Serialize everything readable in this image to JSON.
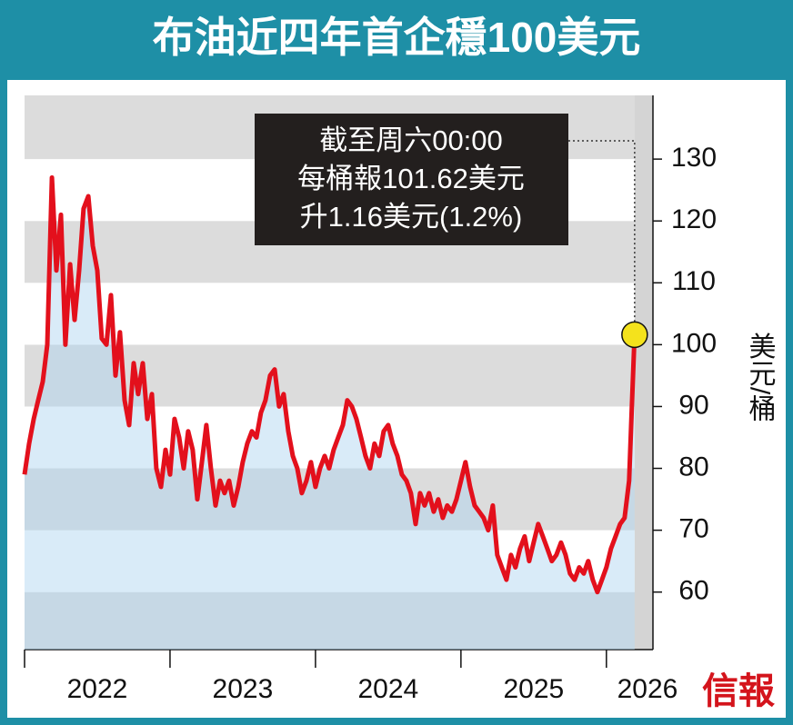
{
  "chart_data": {
    "type": "line",
    "title": "布油近四年首企穩100美元",
    "y_label": "美元/桶",
    "annotation": [
      "截至周六00:00",
      "每桶報101.62美元",
      "升1.16美元(1.2%)"
    ],
    "source": "信報",
    "xlim": [
      2022,
      2026.32
    ],
    "xticks": [
      {
        "value": 2022,
        "label": "2022"
      },
      {
        "value": 2023,
        "label": "2023"
      },
      {
        "value": 2024,
        "label": "2024"
      },
      {
        "value": 2025,
        "label": "2025"
      },
      {
        "value": 2026,
        "label": "2026"
      }
    ],
    "ylim": [
      50.7,
      140.3
    ],
    "yticks": [
      60,
      70,
      80,
      90,
      100,
      110,
      120,
      130
    ],
    "grid": true,
    "color": "#e3101c",
    "x": [
      2022.0,
      2022.031,
      2022.063,
      2022.094,
      2022.125,
      2022.156,
      2022.188,
      2022.219,
      2022.25,
      2022.281,
      2022.313,
      2022.344,
      2022.375,
      2022.406,
      2022.438,
      2022.469,
      2022.5,
      2022.531,
      2022.563,
      2022.594,
      2022.625,
      2022.656,
      2022.688,
      2022.719,
      2022.75,
      2022.781,
      2022.813,
      2022.844,
      2022.875,
      2022.906,
      2022.938,
      2022.969,
      2023.0,
      2023.031,
      2023.063,
      2023.094,
      2023.125,
      2023.156,
      2023.188,
      2023.219,
      2023.25,
      2023.281,
      2023.313,
      2023.344,
      2023.375,
      2023.406,
      2023.438,
      2023.469,
      2023.5,
      2023.531,
      2023.563,
      2023.594,
      2023.625,
      2023.656,
      2023.688,
      2023.719,
      2023.75,
      2023.781,
      2023.813,
      2023.844,
      2023.875,
      2023.906,
      2023.938,
      2023.969,
      2024.0,
      2024.031,
      2024.063,
      2024.094,
      2024.125,
      2024.156,
      2024.188,
      2024.219,
      2024.25,
      2024.281,
      2024.313,
      2024.344,
      2024.375,
      2024.406,
      2024.438,
      2024.469,
      2024.5,
      2024.531,
      2024.563,
      2024.594,
      2024.625,
      2024.656,
      2024.688,
      2024.719,
      2024.75,
      2024.781,
      2024.813,
      2024.844,
      2024.875,
      2024.906,
      2024.938,
      2024.969,
      2025.0,
      2025.031,
      2025.063,
      2025.094,
      2025.125,
      2025.156,
      2025.188,
      2025.219,
      2025.25,
      2025.281,
      2025.313,
      2025.344,
      2025.375,
      2025.406,
      2025.438,
      2025.469,
      2025.5,
      2025.531,
      2025.563,
      2025.594,
      2025.625,
      2025.656,
      2025.688,
      2025.719,
      2025.75,
      2025.781,
      2025.813,
      2025.844,
      2025.875,
      2025.906,
      2025.938,
      2025.969,
      2026.0,
      2026.031,
      2026.063,
      2026.094,
      2026.125,
      2026.156,
      2026.175,
      2026.194
    ],
    "values": [
      79,
      84,
      88,
      91,
      94,
      100,
      127,
      112,
      121,
      100,
      113,
      104,
      112,
      122,
      124,
      116,
      112,
      101,
      100,
      108,
      95,
      102,
      91,
      87,
      97,
      92,
      97,
      88,
      92,
      80,
      77,
      83,
      79,
      88,
      85,
      80,
      86,
      83,
      75,
      81,
      87,
      80,
      74,
      78,
      76,
      78,
      74,
      77,
      81,
      84,
      86,
      85,
      89,
      91,
      95,
      96,
      90,
      92,
      86,
      82,
      80,
      76,
      78,
      81,
      77,
      80,
      82,
      80,
      83,
      85,
      87,
      91,
      90,
      88,
      85,
      82,
      80,
      84,
      82,
      86,
      87,
      84,
      82,
      79,
      78,
      76,
      71,
      76,
      74,
      76,
      73,
      75,
      72,
      74,
      73,
      75,
      78,
      81,
      77,
      74,
      73,
      72,
      70,
      74,
      66,
      64,
      62,
      66,
      64,
      67,
      69,
      65,
      68,
      71,
      69,
      67,
      65,
      66,
      68,
      66,
      63,
      62,
      64,
      63,
      65,
      62,
      60,
      62,
      64,
      67,
      69,
      71,
      72,
      78,
      90,
      101.62
    ]
  }
}
